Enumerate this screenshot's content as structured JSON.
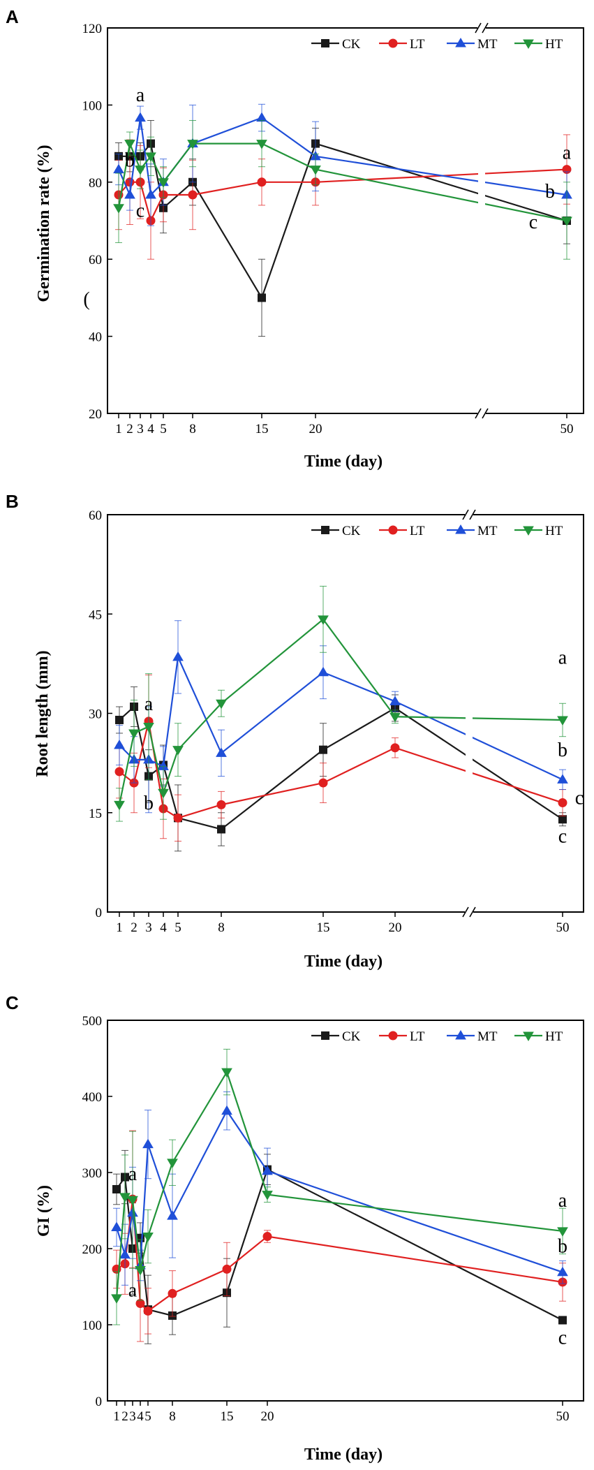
{
  "colors": {
    "CK": "#1a1a1a",
    "LT": "#e02020",
    "MT": "#1f4fd8",
    "HT": "#22943a"
  },
  "chart_data": [
    {
      "panel": "A",
      "type": "line",
      "xlabel": "Time (day)",
      "ylabel": "Germination rate (%)",
      "ylim": [
        20,
        120
      ],
      "yticks": [
        20,
        40,
        60,
        80,
        100,
        120
      ],
      "x": [
        1,
        2,
        3,
        4,
        5,
        8,
        15,
        20,
        50
      ],
      "x_break": true,
      "legend": [
        "CK",
        "LT",
        "MT",
        "HT"
      ],
      "legend_position": "top-right",
      "series": [
        {
          "name": "CK",
          "marker": "square",
          "values": [
            86.7,
            86.7,
            86.7,
            90,
            73.3,
            80,
            50,
            90,
            70
          ],
          "errors": [
            3.5,
            4,
            3.5,
            6,
            6.5,
            6,
            10,
            4,
            6
          ]
        },
        {
          "name": "LT",
          "marker": "circle",
          "values": [
            76.7,
            80,
            80,
            70,
            76.7,
            76.7,
            80,
            80,
            83.3
          ],
          "errors": [
            9,
            11,
            9.5,
            10,
            7,
            9,
            6,
            6,
            9
          ]
        },
        {
          "name": "MT",
          "marker": "triangle-up",
          "values": [
            83.3,
            76.7,
            96.7,
            76.7,
            80,
            90,
            96.7,
            86.7,
            76.7
          ],
          "errors": [
            4,
            4,
            3,
            8,
            6,
            10,
            3.5,
            9,
            6
          ]
        },
        {
          "name": "HT",
          "marker": "triangle-down",
          "values": [
            73.3,
            90,
            83.3,
            86.7,
            80,
            90,
            90,
            83.3,
            70
          ],
          "errors": [
            9,
            3,
            5,
            5,
            4,
            6,
            6,
            4,
            10
          ]
        }
      ],
      "annotations": [
        {
          "text": "a",
          "x": 3,
          "y": 101
        },
        {
          "text": "b",
          "x": 2,
          "y": 84
        },
        {
          "text": "c",
          "x": 3,
          "y": 71
        },
        {
          "text": "a",
          "x": 50,
          "y": 86
        },
        {
          "text": "b",
          "x": 48,
          "y": 76
        },
        {
          "text": "c",
          "x": 46,
          "y": 68
        },
        {
          "text": "(",
          "x": 0.1,
          "y": 48
        }
      ]
    },
    {
      "panel": "B",
      "type": "line",
      "xlabel": "Time (day)",
      "ylabel": "Root length (mm)",
      "ylim": [
        0,
        60
      ],
      "yticks": [
        0,
        15,
        30,
        45,
        60
      ],
      "x": [
        1,
        2,
        3,
        4,
        5,
        8,
        15,
        20,
        50
      ],
      "x_break": true,
      "legend": [
        "CK",
        "LT",
        "MT",
        "HT"
      ],
      "legend_position": "top-right",
      "series": [
        {
          "name": "CK",
          "marker": "square",
          "values": [
            29.0,
            31.0,
            20.5,
            22.2,
            14.2,
            12.5,
            24.5,
            30.8,
            14.0
          ],
          "errors": [
            2,
            3,
            4,
            3,
            5,
            2.5,
            4,
            2,
            1
          ]
        },
        {
          "name": "LT",
          "marker": "circle",
          "values": [
            21.2,
            19.5,
            28.8,
            15.6,
            14.2,
            16.2,
            19.5,
            24.8,
            16.5
          ],
          "errors": [
            4,
            4.5,
            7,
            4.5,
            3.5,
            2,
            3,
            1.5,
            2
          ]
        },
        {
          "name": "MT",
          "marker": "triangle-up",
          "values": [
            25.2,
            23.0,
            23.0,
            22.0,
            38.5,
            24.0,
            36.2,
            31.8,
            20.0
          ],
          "errors": [
            3,
            3.5,
            8,
            3,
            5.5,
            3.5,
            4,
            1.5,
            1.5
          ]
        },
        {
          "name": "HT",
          "marker": "triangle-down",
          "values": [
            16.2,
            27.0,
            28.0,
            18.0,
            24.5,
            31.5,
            44.2,
            29.5,
            29.0
          ],
          "errors": [
            2.5,
            5,
            8,
            4,
            4,
            2,
            5,
            1,
            2.5
          ]
        }
      ],
      "annotations": [
        {
          "text": "a",
          "x": 3,
          "y": 30.5
        },
        {
          "text": "b",
          "x": 3,
          "y": 15.5
        },
        {
          "text": "a",
          "x": 50,
          "y": 37.5
        },
        {
          "text": "b",
          "x": 50,
          "y": 23.5
        },
        {
          "text": "c",
          "x": 53,
          "y": 16.3
        },
        {
          "text": "c",
          "x": 50,
          "y": 10.5
        }
      ]
    },
    {
      "panel": "C",
      "type": "line",
      "xlabel": "Time (day)",
      "ylabel": "GI (%)",
      "ylim": [
        0,
        500
      ],
      "yticks": [
        0,
        100,
        200,
        300,
        400,
        500
      ],
      "x": [
        1,
        2,
        3,
        4,
        5,
        8,
        15,
        20,
        50
      ],
      "x_break": false,
      "xtick_labels": [
        "1",
        "2",
        "3",
        "4",
        "5",
        "8",
        "15",
        "20",
        "50"
      ],
      "legend": [
        "CK",
        "LT",
        "MT",
        "HT"
      ],
      "legend_position": "top-right",
      "series": [
        {
          "name": "CK",
          "marker": "square",
          "values": [
            278,
            294,
            200,
            214,
            120,
            112,
            142,
            304,
            106
          ],
          "errors": [
            20,
            35,
            60,
            20,
            45,
            25,
            45,
            20,
            5
          ]
        },
        {
          "name": "LT",
          "marker": "circle",
          "values": [
            173,
            180,
            265,
            128,
            118,
            141,
            173,
            216,
            156
          ],
          "errors": [
            25,
            40,
            90,
            50,
            30,
            30,
            35,
            8,
            25
          ]
        },
        {
          "name": "MT",
          "marker": "triangle-up",
          "values": [
            228,
            192,
            247,
            178,
            337,
            243,
            381,
            302,
            169
          ],
          "errors": [
            25,
            40,
            60,
            20,
            45,
            55,
            25,
            30,
            15
          ]
        },
        {
          "name": "HT",
          "marker": "triangle-down",
          "values": [
            135,
            268,
            264,
            172,
            216,
            313,
            432,
            271,
            223
          ],
          "errors": [
            35,
            55,
            90,
            40,
            35,
            30,
            30,
            10,
            30
          ]
        }
      ],
      "annotations": [
        {
          "text": "a",
          "x": 3,
          "y": 290
        },
        {
          "text": "a",
          "x": 3,
          "y": 137
        },
        {
          "text": "a",
          "x": 50,
          "y": 255
        },
        {
          "text": "b",
          "x": 50,
          "y": 195
        },
        {
          "text": "c",
          "x": 50,
          "y": 75
        }
      ]
    }
  ]
}
